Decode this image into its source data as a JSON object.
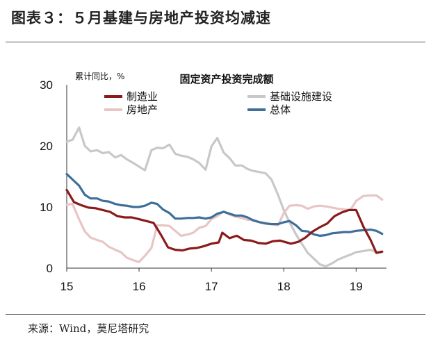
{
  "header": {
    "title": "图表３：５月基建与房地产投资均减速"
  },
  "footer": {
    "source": "来源：Wind，莫尼塔研究"
  },
  "chart_data": {
    "type": "line",
    "title": "固定资产投资完成额",
    "ylabel": "累计同比，%",
    "xlabel": "",
    "ylim": [
      0,
      30
    ],
    "yticks": [
      0,
      10,
      20,
      30
    ],
    "xlim": [
      2015.0,
      2019.42
    ],
    "xticks": [
      {
        "value": 2015,
        "label": "15"
      },
      {
        "value": 2016,
        "label": "16"
      },
      {
        "value": 2017,
        "label": "17"
      },
      {
        "value": 2018,
        "label": "18"
      },
      {
        "value": 2019,
        "label": "19"
      }
    ],
    "grid": false,
    "legend_position": "top",
    "series": [
      {
        "name": "制造业",
        "color": "#8b1a1a",
        "points": [
          [
            2015.0,
            12.8
          ],
          [
            2015.1,
            10.8
          ],
          [
            2015.2,
            10.3
          ],
          [
            2015.3,
            9.9
          ],
          [
            2015.4,
            9.8
          ],
          [
            2015.5,
            9.5
          ],
          [
            2015.6,
            9.2
          ],
          [
            2015.7,
            8.5
          ],
          [
            2015.8,
            8.3
          ],
          [
            2015.9,
            8.3
          ],
          [
            2016.0,
            8.0
          ],
          [
            2016.1,
            7.7
          ],
          [
            2016.2,
            7.4
          ],
          [
            2016.3,
            5.5
          ],
          [
            2016.4,
            3.4
          ],
          [
            2016.5,
            3.0
          ],
          [
            2016.6,
            2.9
          ],
          [
            2016.7,
            3.2
          ],
          [
            2016.8,
            3.3
          ],
          [
            2016.9,
            3.6
          ],
          [
            2017.0,
            4.0
          ],
          [
            2017.1,
            4.2
          ],
          [
            2017.15,
            5.8
          ],
          [
            2017.25,
            4.9
          ],
          [
            2017.35,
            5.3
          ],
          [
            2017.45,
            4.6
          ],
          [
            2017.55,
            4.5
          ],
          [
            2017.65,
            4.1
          ],
          [
            2017.75,
            4.0
          ],
          [
            2017.85,
            4.4
          ],
          [
            2017.95,
            4.5
          ],
          [
            2018.1,
            4.0
          ],
          [
            2018.2,
            4.3
          ],
          [
            2018.3,
            5.0
          ],
          [
            2018.4,
            6.0
          ],
          [
            2018.5,
            6.7
          ],
          [
            2018.6,
            7.3
          ],
          [
            2018.7,
            8.5
          ],
          [
            2018.8,
            9.1
          ],
          [
            2018.9,
            9.5
          ],
          [
            2019.0,
            9.5
          ],
          [
            2019.1,
            6.8
          ],
          [
            2019.2,
            4.6
          ],
          [
            2019.28,
            2.5
          ],
          [
            2019.36,
            2.7
          ]
        ]
      },
      {
        "name": "基础设施建设",
        "color": "#c8c8c8",
        "points": [
          [
            2015.0,
            20.7
          ],
          [
            2015.08,
            21.0
          ],
          [
            2015.17,
            23.0
          ],
          [
            2015.25,
            20.0
          ],
          [
            2015.33,
            19.1
          ],
          [
            2015.42,
            19.3
          ],
          [
            2015.5,
            18.8
          ],
          [
            2015.58,
            19.0
          ],
          [
            2015.67,
            18.1
          ],
          [
            2015.75,
            18.5
          ],
          [
            2015.83,
            17.8
          ],
          [
            2015.92,
            17.2
          ],
          [
            2016.0,
            16.6
          ],
          [
            2016.08,
            16.0
          ],
          [
            2016.17,
            19.3
          ],
          [
            2016.25,
            19.7
          ],
          [
            2016.33,
            19.6
          ],
          [
            2016.42,
            20.2
          ],
          [
            2016.5,
            18.7
          ],
          [
            2016.58,
            18.4
          ],
          [
            2016.67,
            18.2
          ],
          [
            2016.75,
            17.8
          ],
          [
            2016.83,
            17.2
          ],
          [
            2016.92,
            16.1
          ],
          [
            2017.0,
            19.9
          ],
          [
            2017.08,
            21.3
          ],
          [
            2017.17,
            18.9
          ],
          [
            2017.25,
            18.0
          ],
          [
            2017.33,
            16.8
          ],
          [
            2017.42,
            16.8
          ],
          [
            2017.5,
            16.2
          ],
          [
            2017.58,
            15.9
          ],
          [
            2017.67,
            15.7
          ],
          [
            2017.75,
            15.5
          ],
          [
            2017.83,
            14.5
          ],
          [
            2017.92,
            12.0
          ],
          [
            2018.0,
            9.5
          ],
          [
            2018.08,
            7.5
          ],
          [
            2018.17,
            5.5
          ],
          [
            2018.25,
            4.0
          ],
          [
            2018.33,
            2.5
          ],
          [
            2018.42,
            1.5
          ],
          [
            2018.5,
            0.6
          ],
          [
            2018.58,
            0.3
          ],
          [
            2018.67,
            0.8
          ],
          [
            2018.75,
            1.4
          ],
          [
            2018.83,
            1.8
          ],
          [
            2018.92,
            2.2
          ],
          [
            2019.0,
            2.6
          ],
          [
            2019.1,
            2.8
          ],
          [
            2019.2,
            3.0
          ],
          [
            2019.3,
            2.5
          ],
          [
            2019.36,
            2.6
          ]
        ]
      },
      {
        "name": "房地产",
        "color": "#e8c5c5",
        "points": [
          [
            2015.0,
            10.4
          ],
          [
            2015.08,
            10.5
          ],
          [
            2015.17,
            8.0
          ],
          [
            2015.25,
            6.0
          ],
          [
            2015.33,
            5.0
          ],
          [
            2015.42,
            4.6
          ],
          [
            2015.5,
            4.3
          ],
          [
            2015.58,
            3.5
          ],
          [
            2015.67,
            3.0
          ],
          [
            2015.75,
            2.6
          ],
          [
            2015.83,
            1.7
          ],
          [
            2015.92,
            1.3
          ],
          [
            2016.0,
            1.0
          ],
          [
            2016.08,
            2.0
          ],
          [
            2016.17,
            3.3
          ],
          [
            2016.25,
            7.0
          ],
          [
            2016.33,
            7.0
          ],
          [
            2016.42,
            6.9
          ],
          [
            2016.5,
            6.1
          ],
          [
            2016.58,
            5.3
          ],
          [
            2016.67,
            5.5
          ],
          [
            2016.75,
            5.8
          ],
          [
            2016.83,
            6.6
          ],
          [
            2016.92,
            6.9
          ],
          [
            2017.0,
            8.0
          ],
          [
            2017.08,
            8.5
          ],
          [
            2017.17,
            9.3
          ],
          [
            2017.25,
            8.8
          ],
          [
            2017.33,
            8.4
          ],
          [
            2017.42,
            8.2
          ],
          [
            2017.5,
            7.9
          ],
          [
            2017.58,
            7.9
          ],
          [
            2017.67,
            7.5
          ],
          [
            2017.75,
            7.4
          ],
          [
            2017.83,
            7.2
          ],
          [
            2017.92,
            7.0
          ],
          [
            2018.0,
            9.0
          ],
          [
            2018.08,
            10.2
          ],
          [
            2018.17,
            10.3
          ],
          [
            2018.25,
            10.2
          ],
          [
            2018.33,
            9.7
          ],
          [
            2018.42,
            10.1
          ],
          [
            2018.5,
            10.2
          ],
          [
            2018.58,
            10.1
          ],
          [
            2018.67,
            9.9
          ],
          [
            2018.75,
            9.7
          ],
          [
            2018.83,
            9.6
          ],
          [
            2018.92,
            9.5
          ],
          [
            2019.0,
            11.0
          ],
          [
            2019.1,
            11.8
          ],
          [
            2019.2,
            11.9
          ],
          [
            2019.28,
            11.9
          ],
          [
            2019.36,
            11.2
          ]
        ]
      },
      {
        "name": "总体",
        "color": "#3f6e99",
        "points": [
          [
            2015.0,
            15.4
          ],
          [
            2015.08,
            14.5
          ],
          [
            2015.17,
            13.5
          ],
          [
            2015.25,
            12.0
          ],
          [
            2015.33,
            11.4
          ],
          [
            2015.42,
            11.4
          ],
          [
            2015.5,
            11.0
          ],
          [
            2015.58,
            10.9
          ],
          [
            2015.67,
            10.5
          ],
          [
            2015.75,
            10.3
          ],
          [
            2015.83,
            10.2
          ],
          [
            2015.92,
            10.0
          ],
          [
            2016.0,
            10.0
          ],
          [
            2016.08,
            10.2
          ],
          [
            2016.17,
            10.7
          ],
          [
            2016.25,
            10.5
          ],
          [
            2016.33,
            9.6
          ],
          [
            2016.42,
            9.0
          ],
          [
            2016.5,
            8.1
          ],
          [
            2016.58,
            8.1
          ],
          [
            2016.67,
            8.2
          ],
          [
            2016.75,
            8.2
          ],
          [
            2016.83,
            8.3
          ],
          [
            2016.92,
            8.1
          ],
          [
            2017.0,
            8.3
          ],
          [
            2017.08,
            8.9
          ],
          [
            2017.17,
            9.2
          ],
          [
            2017.25,
            8.9
          ],
          [
            2017.33,
            8.6
          ],
          [
            2017.42,
            8.6
          ],
          [
            2017.5,
            8.3
          ],
          [
            2017.58,
            7.8
          ],
          [
            2017.67,
            7.5
          ],
          [
            2017.75,
            7.3
          ],
          [
            2017.83,
            7.2
          ],
          [
            2017.92,
            7.2
          ],
          [
            2018.0,
            7.5
          ],
          [
            2018.08,
            7.7
          ],
          [
            2018.17,
            7.0
          ],
          [
            2018.25,
            6.1
          ],
          [
            2018.33,
            6.0
          ],
          [
            2018.42,
            5.5
          ],
          [
            2018.5,
            5.3
          ],
          [
            2018.58,
            5.4
          ],
          [
            2018.67,
            5.7
          ],
          [
            2018.75,
            5.8
          ],
          [
            2018.83,
            5.9
          ],
          [
            2018.92,
            5.9
          ],
          [
            2019.0,
            6.1
          ],
          [
            2019.1,
            6.2
          ],
          [
            2019.2,
            6.3
          ],
          [
            2019.28,
            6.1
          ],
          [
            2019.36,
            5.6
          ]
        ]
      }
    ]
  }
}
